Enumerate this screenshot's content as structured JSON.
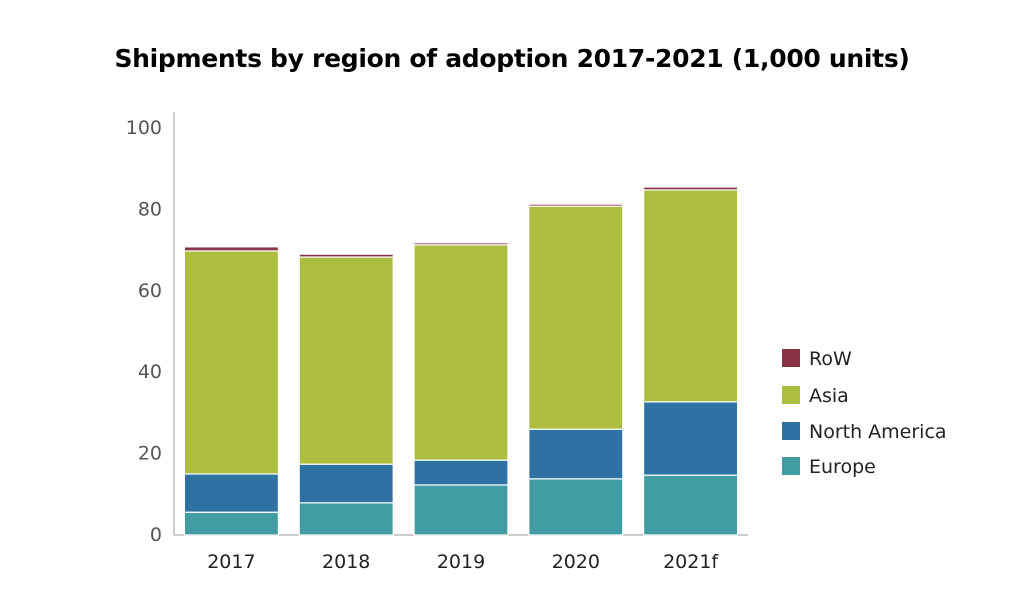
{
  "chart_data": {
    "type": "bar",
    "stacked": true,
    "title": "Shipments by region of adoption 2017-2021 (1,000 units)",
    "xlabel": "",
    "ylabel": "",
    "ylim": [
      0,
      100
    ],
    "yticks": [
      0,
      20,
      40,
      60,
      80,
      100
    ],
    "grid": false,
    "legend_position": "right",
    "categories": [
      "2017",
      "2018",
      "2019",
      "2020",
      "2021f"
    ],
    "series": [
      {
        "name": "Europe",
        "color": "#419ca4",
        "values": [
          5.6,
          7.9,
          12.3,
          13.8,
          14.7
        ]
      },
      {
        "name": "North America",
        "color": "#2e72a4",
        "values": [
          9.4,
          9.5,
          6.1,
          12.2,
          18.0
        ]
      },
      {
        "name": "Asia",
        "color": "#adbd40",
        "values": [
          54.8,
          50.9,
          52.9,
          54.8,
          52.1
        ]
      },
      {
        "name": "RoW",
        "color": "#8b3346",
        "values": [
          1.0,
          0.7,
          0.5,
          0.5,
          0.7
        ]
      }
    ]
  }
}
